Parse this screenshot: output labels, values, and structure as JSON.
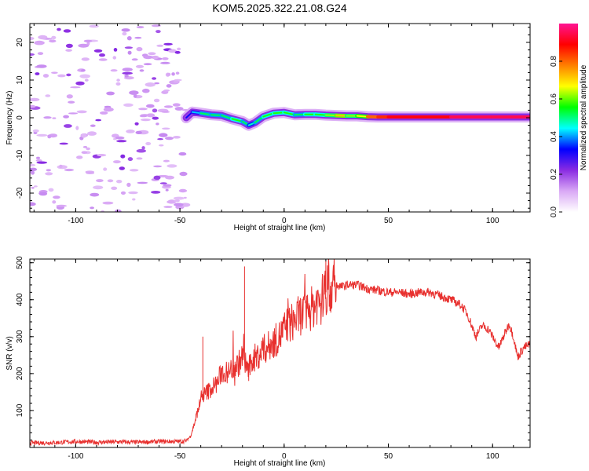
{
  "title": "KOM5.2025.322.21.08.G24",
  "chart_data": [
    {
      "type": "heatmap",
      "xlabel": "Height of straight line (km)",
      "ylabel": "Frequency (Hz)",
      "xlim": [
        -122,
        118
      ],
      "ylim": [
        -25,
        25
      ],
      "xticks": [
        -100,
        -50,
        0,
        50,
        100
      ],
      "yticks": [
        -20,
        -10,
        0,
        10,
        20
      ],
      "grid": false,
      "colorbar": {
        "label": "Normalized spectral amplitude",
        "range": [
          0,
          1
        ],
        "ticks": [
          0.0,
          0.2,
          0.4,
          0.6,
          0.8
        ],
        "tick_labels": [
          "0.0",
          "0.2",
          "0.4",
          "0.6",
          "0.8"
        ],
        "colormap": [
          "#ffffff",
          "#d9a8f5",
          "#8a2be2",
          "#0000ff",
          "#00ffff",
          "#00ff00",
          "#ffff00",
          "#ff7f00",
          "#ff0000",
          "#ff1493"
        ]
      },
      "ridge": {
        "x": [
          -47,
          -44,
          -40,
          -35,
          -30,
          -25,
          -20,
          -17,
          -14,
          -10,
          -5,
          0,
          5,
          10,
          15,
          20,
          25,
          30,
          35,
          40,
          45,
          50,
          60,
          70,
          80,
          90,
          100,
          110,
          118
        ],
        "y": [
          0.0,
          1.5,
          1.2,
          0.8,
          0.6,
          -0.3,
          -1.0,
          -2.0,
          -1.3,
          0.3,
          1.2,
          1.4,
          0.8,
          0.9,
          0.9,
          0.7,
          0.6,
          0.5,
          0.5,
          0.3,
          0.2,
          0.2,
          0.2,
          0.2,
          0.2,
          0.2,
          0.2,
          0.2,
          0.2
        ],
        "amplitude": [
          0.2,
          0.3,
          0.4,
          0.4,
          0.4,
          0.45,
          0.4,
          0.35,
          0.4,
          0.45,
          0.45,
          0.45,
          0.4,
          0.45,
          0.45,
          0.5,
          0.6,
          0.5,
          0.55,
          0.8,
          0.85,
          0.9,
          0.9,
          0.9,
          0.95,
          0.95,
          0.95,
          0.95,
          0.95
        ]
      },
      "noise_region_x": [
        -122,
        -47
      ]
    },
    {
      "type": "line",
      "xlabel": "Height of straight line (km)",
      "ylabel": "SNR (v/v)",
      "xlim": [
        -122,
        118
      ],
      "ylim": [
        0,
        510
      ],
      "xticks": [
        -100,
        -50,
        0,
        50,
        100
      ],
      "yticks": [
        100,
        200,
        300,
        400,
        500
      ],
      "grid": false,
      "series": [
        {
          "color": "#e8312f",
          "x": [
            -122,
            -110,
            -100,
            -90,
            -80,
            -70,
            -60,
            -55,
            -50,
            -47,
            -45,
            -43,
            -41,
            -39,
            -37,
            -35,
            -32,
            -30,
            -27,
            -25,
            -22,
            -20,
            -17,
            -15,
            -12,
            -10,
            -7,
            -5,
            -2,
            0,
            3,
            5,
            8,
            10,
            12,
            15,
            18,
            20,
            23,
            25,
            28,
            30,
            35,
            40,
            45,
            50,
            55,
            60,
            65,
            70,
            75,
            80,
            85,
            88,
            90,
            92,
            95,
            98,
            100,
            103,
            106,
            108,
            110,
            112,
            115,
            118
          ],
          "y": [
            12,
            13,
            16,
            14,
            15,
            14,
            16,
            16,
            16,
            18,
            30,
            65,
            110,
            140,
            150,
            160,
            175,
            205,
            200,
            215,
            225,
            245,
            210,
            240,
            250,
            265,
            275,
            285,
            300,
            320,
            335,
            345,
            360,
            360,
            372,
            385,
            405,
            420,
            430,
            440,
            435,
            440,
            440,
            430,
            425,
            420,
            420,
            415,
            420,
            420,
            410,
            400,
            385,
            360,
            330,
            300,
            330,
            320,
            300,
            270,
            310,
            335,
            300,
            245,
            270,
            280
          ]
        }
      ]
    }
  ]
}
